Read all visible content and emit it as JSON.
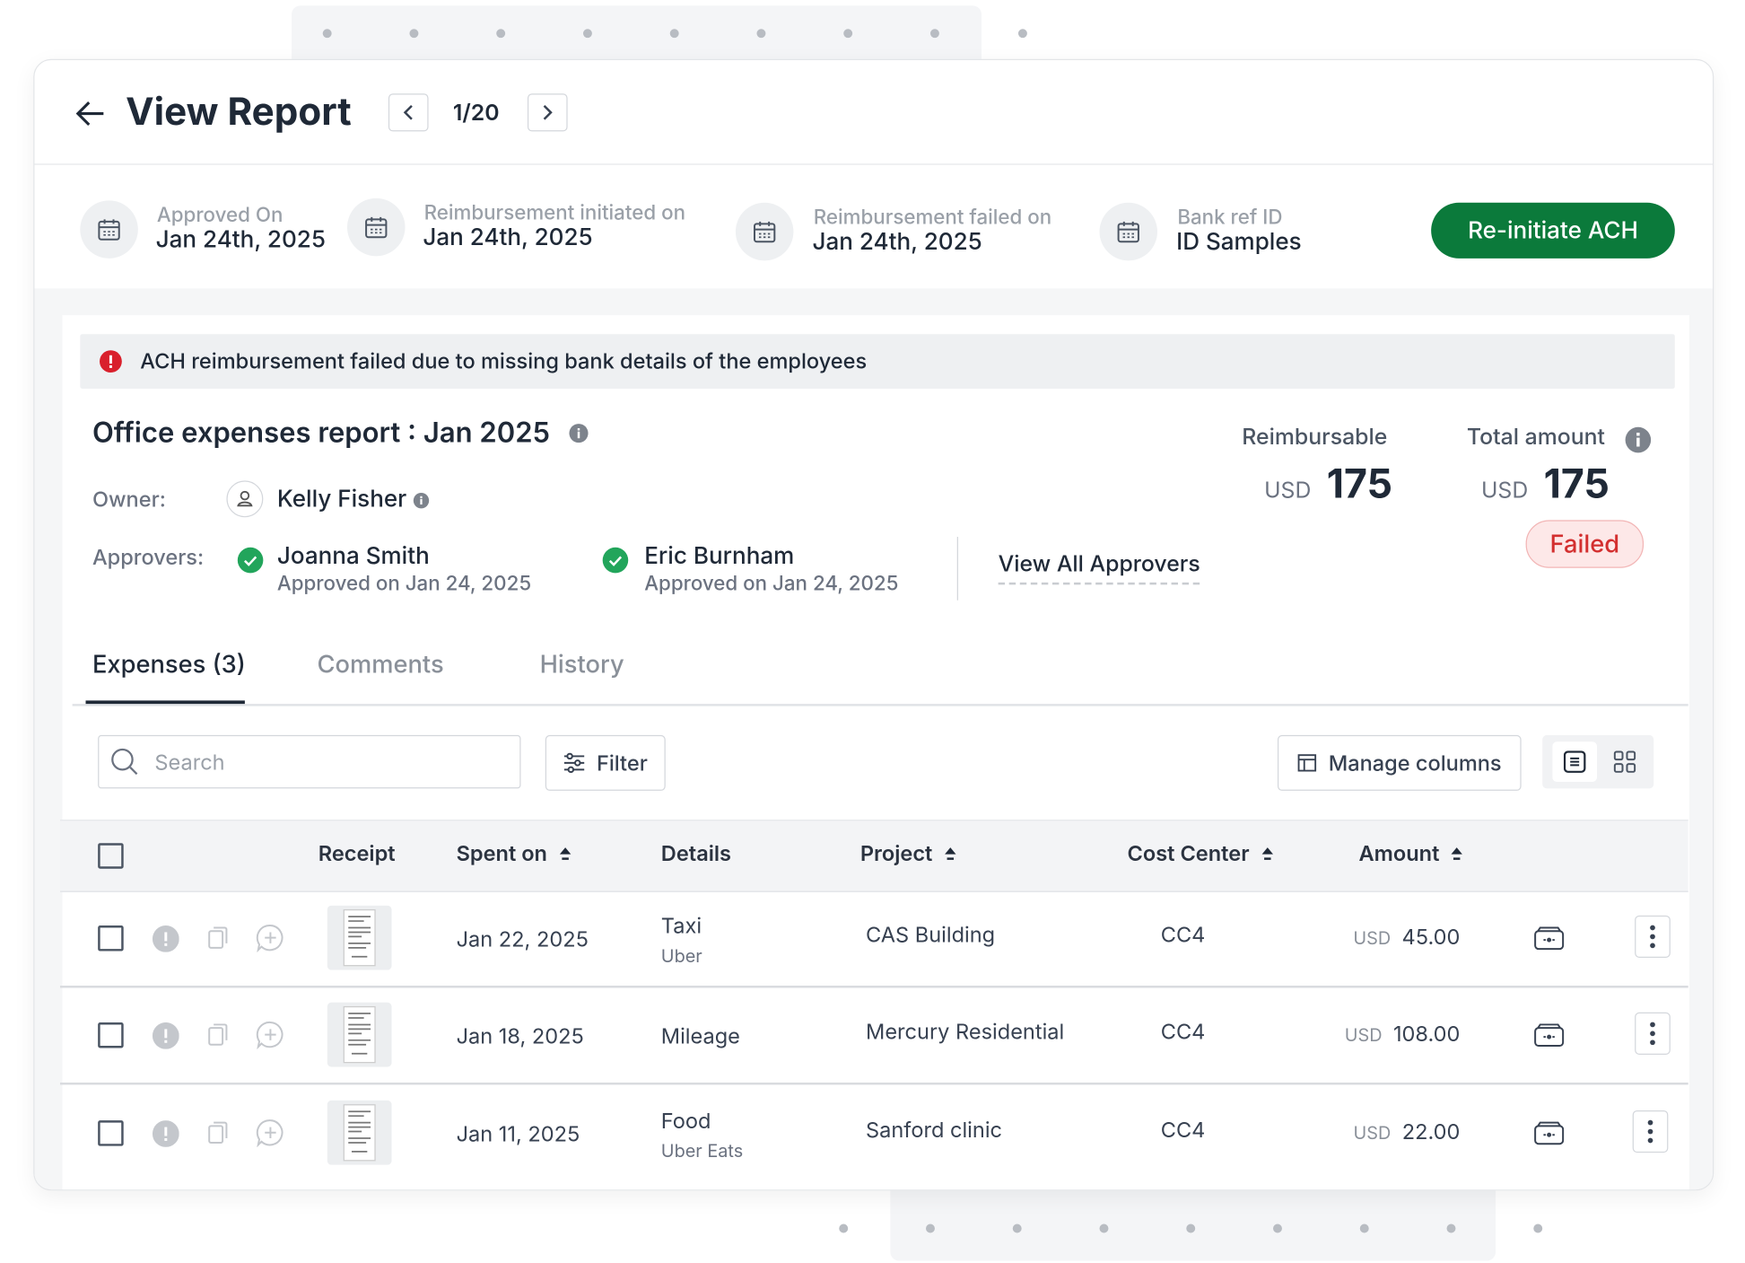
{
  "header": {
    "title": "View Report",
    "pager": "1/20"
  },
  "meta": [
    {
      "label": "Approved On",
      "value": "Jan 24th, 2025"
    },
    {
      "label": "Reimbursement initiated on",
      "value": "Jan 24th, 2025"
    },
    {
      "label": "Reimbursement failed on",
      "value": "Jan 24th, 2025"
    },
    {
      "label": "Bank ref ID",
      "value": "ID Samples"
    }
  ],
  "action_button": "Re-initiate ACH",
  "alert": "ACH reimbursement failed due to missing bank details of the employees",
  "report": {
    "title": "Office expenses report : Jan 2025",
    "owner_label": "Owner:",
    "owner": "Kelly Fisher",
    "approvers_label": "Approvers:",
    "approvers": [
      {
        "name": "Joanna Smith",
        "date": "Approved on Jan 24, 2025"
      },
      {
        "name": "Eric Burnham",
        "date": "Approved on Jan 24, 2025"
      }
    ],
    "view_all": "View All Approvers",
    "reimbursable": {
      "label": "Reimbursable",
      "currency": "USD",
      "amount": "175"
    },
    "total": {
      "label": "Total amount",
      "currency": "USD",
      "amount": "175"
    },
    "status": "Failed"
  },
  "tabs": [
    "Expenses (3)",
    "Comments",
    "History"
  ],
  "toolbar": {
    "search_placeholder": "Search",
    "filter": "Filter",
    "manage_columns": "Manage columns"
  },
  "table": {
    "columns": [
      "Receipt",
      "Spent on",
      "Details",
      "Project",
      "Cost Center",
      "Amount"
    ],
    "rows": [
      {
        "spent_on": "Jan 22, 2025",
        "details": "Taxi",
        "details_sub": "Uber",
        "project": "CAS Building",
        "cost_center": "CC4",
        "currency": "USD",
        "amount": "45.00"
      },
      {
        "spent_on": "Jan 18, 2025",
        "details": "Mileage",
        "details_sub": null,
        "project": "Mercury Residential",
        "cost_center": "CC4",
        "currency": "USD",
        "amount": "108.00"
      },
      {
        "spent_on": "Jan 11, 2025",
        "details": "Food",
        "details_sub": "Uber Eats",
        "project": "Sanford clinic",
        "cost_center": "CC4",
        "currency": "USD",
        "amount": "22.00"
      }
    ]
  }
}
